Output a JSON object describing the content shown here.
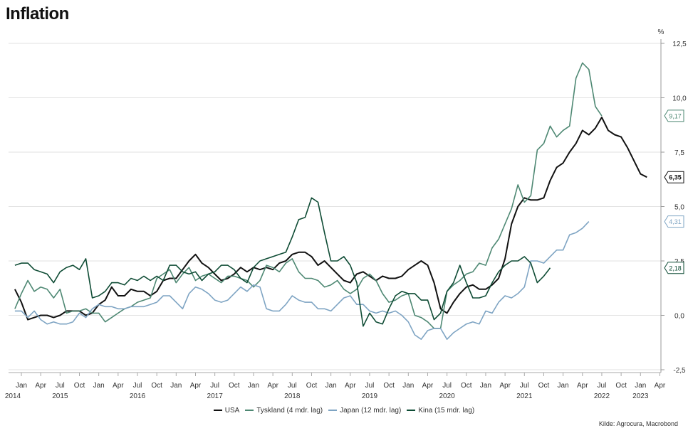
{
  "title": "Inflation",
  "source": "Kilde: Agrocura, Macrobond",
  "chart_data": {
    "type": "line",
    "title": "Inflation",
    "unit": "%",
    "ylim": [
      -2.5,
      12.5
    ],
    "yticks": [
      -2.5,
      0.0,
      2.5,
      5.0,
      7.5,
      10.0,
      12.5
    ],
    "ytick_labels": [
      "-2,5",
      "0,0",
      "2,5",
      "5,0",
      "7,5",
      "10,0",
      "12,5"
    ],
    "grid": true,
    "legend_position": "bottom",
    "x_start": "2014-01",
    "x_end": "2023-04",
    "xtick_labels": [
      {
        "month": "Jan",
        "year": "2014"
      },
      {
        "month": "Apr",
        "year": ""
      },
      {
        "month": "Jul",
        "year": "2015"
      },
      {
        "month": "Oct",
        "year": ""
      },
      {
        "month": "Jan",
        "year": ""
      },
      {
        "month": "Apr",
        "year": ""
      },
      {
        "month": "Jul",
        "year": "2016"
      },
      {
        "month": "Oct",
        "year": ""
      },
      {
        "month": "Jan",
        "year": ""
      },
      {
        "month": "Apr",
        "year": ""
      },
      {
        "month": "Jul",
        "year": "2017"
      },
      {
        "month": "Oct",
        "year": ""
      },
      {
        "month": "Jan",
        "year": ""
      },
      {
        "month": "Apr",
        "year": ""
      },
      {
        "month": "Jul",
        "year": "2018"
      },
      {
        "month": "Oct",
        "year": ""
      },
      {
        "month": "Jan",
        "year": ""
      },
      {
        "month": "Apr",
        "year": ""
      },
      {
        "month": "Jul",
        "year": "2019"
      },
      {
        "month": "Oct",
        "year": ""
      },
      {
        "month": "Jan",
        "year": ""
      },
      {
        "month": "Apr",
        "year": ""
      },
      {
        "month": "Jul",
        "year": "2020"
      },
      {
        "month": "Oct",
        "year": ""
      },
      {
        "month": "Jan",
        "year": ""
      },
      {
        "month": "Apr",
        "year": ""
      },
      {
        "month": "Jul",
        "year": "2021"
      },
      {
        "month": "Oct",
        "year": ""
      },
      {
        "month": "Jan",
        "year": ""
      },
      {
        "month": "Apr",
        "year": ""
      },
      {
        "month": "Jul",
        "year": "2022"
      },
      {
        "month": "Oct",
        "year": ""
      },
      {
        "month": "Jan",
        "year": "2023"
      },
      {
        "month": "Apr",
        "year": ""
      }
    ],
    "series": [
      {
        "name": "USA",
        "color": "#111111",
        "end_label": "6,35",
        "start": "2013-12",
        "values": [
          1.2,
          0.6,
          -0.2,
          -0.1,
          0.0,
          0.0,
          -0.1,
          0.0,
          0.2,
          0.2,
          0.2,
          0.0,
          0.1,
          0.5,
          0.7,
          1.3,
          0.9,
          0.9,
          1.2,
          1.1,
          1.1,
          0.9,
          1.1,
          1.6,
          1.7,
          1.7,
          2.1,
          2.5,
          2.8,
          2.4,
          2.2,
          1.9,
          1.6,
          1.7,
          1.9,
          2.2,
          2.0,
          2.2,
          2.1,
          2.2,
          2.1,
          2.4,
          2.5,
          2.8,
          2.9,
          2.9,
          2.7,
          2.3,
          2.5,
          2.2,
          1.9,
          1.6,
          1.5,
          1.9,
          2.0,
          1.8,
          1.6,
          1.8,
          1.7,
          1.7,
          1.8,
          2.1,
          2.3,
          2.5,
          2.3,
          1.5,
          0.3,
          0.1,
          0.6,
          1.0,
          1.3,
          1.4,
          1.2,
          1.2,
          1.4,
          1.7,
          2.6,
          4.2,
          5.0,
          5.4,
          5.3,
          5.3,
          5.4,
          6.2,
          6.8,
          7.0,
          7.5,
          7.9,
          8.5,
          8.3,
          8.6,
          9.1,
          8.5,
          8.3,
          8.2,
          7.7,
          7.1,
          6.5,
          6.35
        ]
      },
      {
        "name": "Tyskland (4 mdr. lag)",
        "color": "#4e8873",
        "end_label": "9,17",
        "start": "2013-12",
        "values": [
          0.3,
          1.0,
          1.6,
          1.1,
          1.3,
          1.2,
          0.8,
          1.2,
          0.1,
          0.2,
          0.2,
          0.3,
          0.1,
          0.1,
          -0.3,
          -0.1,
          0.1,
          0.3,
          0.4,
          0.6,
          0.7,
          0.8,
          1.7,
          1.9,
          2.1,
          1.5,
          1.9,
          2.2,
          1.6,
          1.8,
          1.9,
          1.7,
          1.5,
          1.8,
          1.8,
          1.7,
          1.6,
          1.3,
          1.6,
          2.3,
          2.2,
          2.0,
          2.4,
          2.6,
          2.0,
          1.7,
          1.7,
          1.6,
          1.3,
          1.4,
          1.6,
          1.2,
          1.0,
          1.2,
          1.7,
          1.9,
          1.6,
          1.0,
          0.6,
          0.7,
          0.9,
          1.0,
          0.0,
          -0.1,
          -0.3,
          -0.6,
          -0.6,
          1.1,
          1.4,
          1.6,
          1.9,
          2.0,
          2.4,
          2.3,
          3.1,
          3.5,
          4.2,
          4.9,
          6.0,
          5.2,
          5.5,
          7.6,
          7.9,
          8.7,
          8.2,
          8.5,
          8.7,
          10.9,
          11.6,
          11.3,
          9.6,
          9.17
        ]
      },
      {
        "name": "Japan (12 mdr. lag)",
        "color": "#7ea4c3",
        "end_label": "4,31",
        "start": "2013-12",
        "values": [
          0.2,
          0.2,
          -0.1,
          0.2,
          -0.2,
          -0.4,
          -0.3,
          -0.4,
          -0.4,
          -0.3,
          0.1,
          -0.1,
          0.3,
          0.5,
          0.4,
          0.4,
          0.3,
          0.3,
          0.4,
          0.4,
          0.4,
          0.5,
          0.6,
          0.9,
          0.9,
          0.6,
          0.3,
          1.0,
          1.3,
          1.2,
          1.0,
          0.7,
          0.6,
          0.7,
          1.0,
          1.3,
          1.1,
          1.4,
          1.3,
          0.3,
          0.2,
          0.2,
          0.5,
          0.9,
          0.7,
          0.6,
          0.6,
          0.3,
          0.3,
          0.2,
          0.5,
          0.8,
          0.9,
          0.5,
          0.5,
          0.2,
          0.1,
          0.2,
          0.1,
          0.2,
          0.0,
          -0.3,
          -0.9,
          -1.1,
          -0.7,
          -0.6,
          -0.6,
          -1.1,
          -0.8,
          -0.6,
          -0.4,
          -0.3,
          -0.4,
          0.2,
          0.1,
          0.6,
          0.9,
          0.8,
          1.0,
          1.3,
          2.5,
          2.5,
          2.4,
          2.7,
          3.0,
          3.0,
          3.7,
          3.8,
          4.0,
          4.31
        ]
      },
      {
        "name": "Kina (15 mdr. lag)",
        "color": "#0f4c35",
        "end_label": "2,18",
        "start": "2013-12",
        "values": [
          2.3,
          2.4,
          2.4,
          2.1,
          2.0,
          1.9,
          1.5,
          2.0,
          2.2,
          2.3,
          2.1,
          2.6,
          0.8,
          0.9,
          1.1,
          1.5,
          1.5,
          1.4,
          1.7,
          1.6,
          1.8,
          1.6,
          1.8,
          1.6,
          2.3,
          2.3,
          2.0,
          1.9,
          2.0,
          1.6,
          1.9,
          2.0,
          2.3,
          2.3,
          2.1,
          1.7,
          1.5,
          2.2,
          2.5,
          2.6,
          2.7,
          2.8,
          2.9,
          3.6,
          4.4,
          4.5,
          5.4,
          5.2,
          3.8,
          2.5,
          2.5,
          2.7,
          2.3,
          1.5,
          -0.5,
          0.1,
          -0.3,
          -0.4,
          0.3,
          0.9,
          1.1,
          1.0,
          1.0,
          0.7,
          0.7,
          -0.2,
          0.1,
          1.1,
          1.5,
          2.3,
          1.5,
          0.8,
          0.8,
          0.9,
          1.5,
          2.0,
          2.3,
          2.5,
          2.5,
          2.7,
          2.4,
          1.5,
          1.8,
          2.18
        ]
      }
    ]
  }
}
